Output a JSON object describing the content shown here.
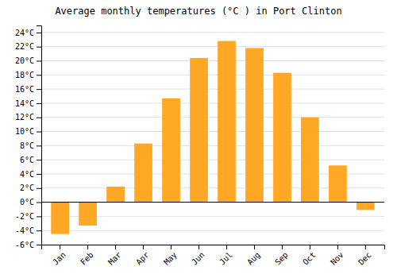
{
  "chart_data": {
    "type": "bar",
    "title": "Average monthly temperatures (°C ) in Port Clinton",
    "categories": [
      "Jan",
      "Feb",
      "Mar",
      "Apr",
      "May",
      "Jun",
      "Jul",
      "Aug",
      "Sep",
      "Oct",
      "Nov",
      "Dec"
    ],
    "values": [
      -4.5,
      -3.3,
      2.2,
      8.3,
      14.7,
      20.4,
      22.8,
      21.8,
      18.3,
      12.0,
      5.2,
      -1.1
    ],
    "color": "#FFA826",
    "ylim": [
      -6,
      25
    ],
    "yticks": [
      {
        "value": -6,
        "label": "-6°C"
      },
      {
        "value": -4,
        "label": "-4°C"
      },
      {
        "value": -2,
        "label": "-2°C"
      },
      {
        "value": 0,
        "label": "0°C"
      },
      {
        "value": 2,
        "label": "2°C"
      },
      {
        "value": 4,
        "label": "4°C"
      },
      {
        "value": 6,
        "label": "6°C"
      },
      {
        "value": 8,
        "label": "8°C"
      },
      {
        "value": 10,
        "label": "10°C"
      },
      {
        "value": 12,
        "label": "12°C"
      },
      {
        "value": 14,
        "label": "14°C"
      },
      {
        "value": 16,
        "label": "16°C"
      },
      {
        "value": 18,
        "label": "18°C"
      },
      {
        "value": 20,
        "label": "20°C"
      },
      {
        "value": 22,
        "label": "22°C"
      },
      {
        "value": 24,
        "label": "24°C"
      }
    ],
    "grid": true
  }
}
